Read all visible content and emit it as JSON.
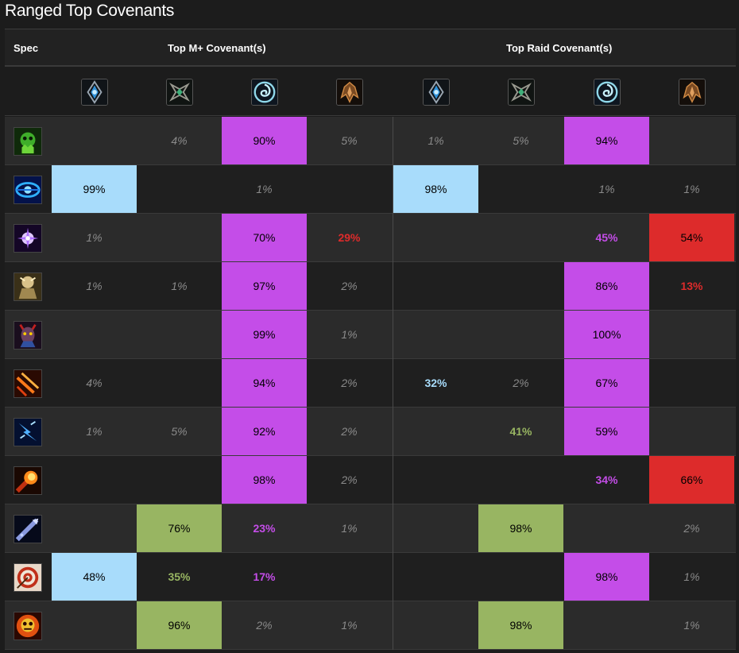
{
  "title": "Ranged Top Covenants",
  "headers": {
    "spec": "Spec",
    "mplus": "Top M+ Covenant(s)",
    "raid": "Top Raid Covenant(s)"
  },
  "covenants": [
    {
      "name": "kyrian-icon",
      "color": "#4aa8e0"
    },
    {
      "name": "necrolord-icon",
      "color": "#5aa878"
    },
    {
      "name": "night-fae-icon",
      "color": "#7fd8e8"
    },
    {
      "name": "venthyr-icon",
      "color": "#c07a3a"
    }
  ],
  "colors": {
    "kyrian": "#a8dcfb",
    "necrolord": "#98b562",
    "nightfae": "#c44de8",
    "venthyr": "#dd2b2b",
    "muted": "#8a8a8a"
  },
  "chart_data": {
    "type": "table",
    "title": "Ranged Top Covenants",
    "columns": [
      "Kyrian",
      "Necrolord",
      "Night Fae",
      "Venthyr"
    ],
    "groups": [
      "Top M+ Covenant(s)",
      "Top Raid Covenant(s)"
    ],
    "rows": [
      {
        "spec": "affliction-warlock-icon",
        "mplus": [
          null,
          4,
          90,
          5
        ],
        "raid": [
          1,
          5,
          94,
          null
        ]
      },
      {
        "spec": "balance-druid-icon",
        "mplus": [
          99,
          null,
          1,
          null
        ],
        "raid": [
          98,
          null,
          1,
          1
        ]
      },
      {
        "spec": "shadow-priest-icon",
        "mplus": [
          1,
          null,
          70,
          29
        ],
        "raid": [
          null,
          null,
          45,
          54
        ]
      },
      {
        "spec": "beast-mastery-hunter-icon",
        "mplus": [
          1,
          1,
          97,
          2
        ],
        "raid": [
          null,
          null,
          86,
          13
        ]
      },
      {
        "spec": "demonology-warlock-icon",
        "mplus": [
          null,
          null,
          99,
          1
        ],
        "raid": [
          null,
          null,
          100,
          null
        ]
      },
      {
        "spec": "destruction-warlock-icon",
        "mplus": [
          4,
          null,
          94,
          2
        ],
        "raid": [
          32,
          2,
          67,
          null
        ]
      },
      {
        "spec": "elemental-shaman-icon",
        "mplus": [
          1,
          5,
          92,
          2
        ],
        "raid": [
          null,
          41,
          59,
          null
        ]
      },
      {
        "spec": "fire-mage-icon",
        "mplus": [
          null,
          null,
          98,
          2
        ],
        "raid": [
          null,
          null,
          34,
          66
        ]
      },
      {
        "spec": "frost-mage-icon",
        "mplus": [
          null,
          76,
          23,
          1
        ],
        "raid": [
          null,
          98,
          null,
          2
        ]
      },
      {
        "spec": "marksmanship-hunter-icon",
        "mplus": [
          48,
          35,
          17,
          null
        ],
        "raid": [
          null,
          null,
          98,
          1
        ]
      },
      {
        "spec": "arcane-mage-icon",
        "mplus": [
          null,
          96,
          2,
          1
        ],
        "raid": [
          null,
          98,
          null,
          1
        ]
      }
    ]
  }
}
